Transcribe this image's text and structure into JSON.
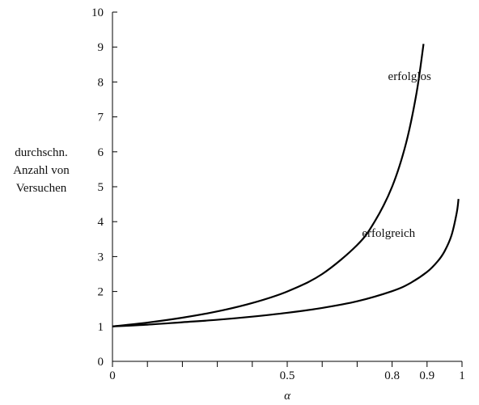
{
  "chart_data": {
    "type": "line",
    "xlabel": "α",
    "ylabel_lines": [
      "durchschn.",
      "Anzahl von",
      "Versuchen"
    ],
    "xlim": [
      0,
      1
    ],
    "ylim": [
      0,
      10
    ],
    "x_ticks": [
      0,
      0.1,
      0.2,
      0.3,
      0.4,
      0.5,
      0.6,
      0.7,
      0.8,
      0.9,
      1
    ],
    "x_tick_labels": [
      {
        "value": 0,
        "label": "0"
      },
      {
        "value": 0.5,
        "label": "0.5"
      },
      {
        "value": 0.8,
        "label": "0.8"
      },
      {
        "value": 0.9,
        "label": "0.9"
      },
      {
        "value": 1,
        "label": "1"
      }
    ],
    "y_ticks": [
      0,
      1,
      2,
      3,
      4,
      5,
      6,
      7,
      8,
      9,
      10
    ],
    "y_tick_labels": [
      "0",
      "1",
      "2",
      "3",
      "4",
      "5",
      "6",
      "7",
      "8",
      "9",
      "10"
    ],
    "grid": false,
    "series": [
      {
        "name": "erfolglos",
        "x": [
          0,
          0.1,
          0.2,
          0.3,
          0.4,
          0.5,
          0.6,
          0.7,
          0.75,
          0.8,
          0.84,
          0.87,
          0.89
        ],
        "y": [
          1.0,
          1.11,
          1.25,
          1.43,
          1.67,
          2.0,
          2.5,
          3.33,
          4.0,
          5.0,
          6.25,
          7.69,
          9.09
        ]
      },
      {
        "name": "erfolgreich",
        "x": [
          0,
          0.1,
          0.2,
          0.3,
          0.4,
          0.5,
          0.6,
          0.7,
          0.8,
          0.85,
          0.9,
          0.93,
          0.95,
          0.97,
          0.985,
          0.99
        ],
        "y": [
          1.0,
          1.05,
          1.12,
          1.19,
          1.28,
          1.39,
          1.53,
          1.72,
          2.01,
          2.23,
          2.56,
          2.86,
          3.15,
          3.61,
          4.26,
          4.65
        ]
      }
    ]
  }
}
